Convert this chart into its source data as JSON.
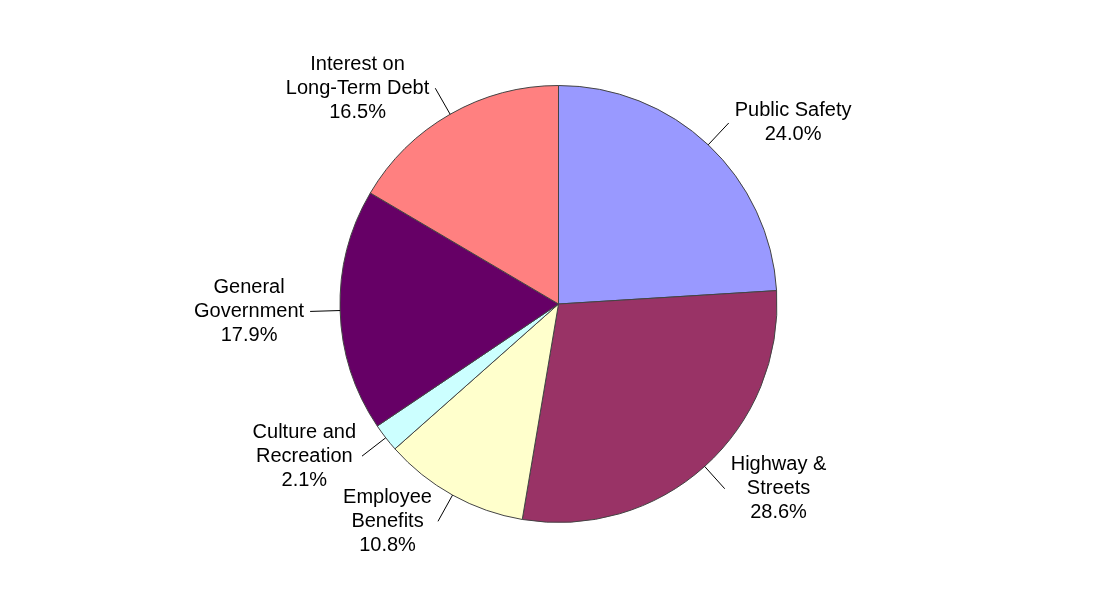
{
  "chart_data": {
    "type": "pie",
    "categories": [
      "Public Safety",
      "Highway & Streets",
      "Employee Benefits",
      "Culture and Recreation",
      "General Government",
      "Interest on Long-Term Debt"
    ],
    "values": [
      24.0,
      28.6,
      10.8,
      2.1,
      17.9,
      16.5
    ],
    "value_labels": [
      "24.0%",
      "28.6%",
      "10.8%",
      "2.1%",
      "17.9%",
      "16.5%"
    ],
    "colors": [
      "#9999ff",
      "#993366",
      "#ffffcc",
      "#ccffff",
      "#660066",
      "#ff8080"
    ],
    "legend": false
  }
}
